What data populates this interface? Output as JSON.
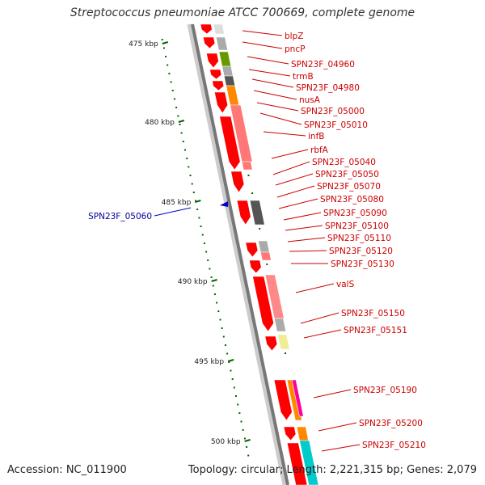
{
  "title": "Streptococcus pneumoniae ATCC 700669, complete genome",
  "footer": {
    "accession": "Accession: NC_011900",
    "summary": "Topology: circular; Length: 2,221,315 bp; Genes: 2,079"
  },
  "kbp_labels": [
    "475 kbp",
    "480 kbp",
    "485 kbp",
    "490 kbp",
    "495 kbp",
    "500 kbp"
  ],
  "gene_labels": [
    "blpZ",
    "pncP",
    "SPN23F_04960",
    "trmB",
    "SPN23F_04980",
    "nusA",
    "SPN23F_05000",
    "SPN23F_05010",
    "infB",
    "rbfA",
    "SPN23F_05040",
    "SPN23F_05050",
    "SPN23F_05070",
    "SPN23F_05080",
    "SPN23F_05090",
    "SPN23F_05100",
    "SPN23F_05110",
    "SPN23F_05120",
    "SPN23F_05130",
    "valS",
    "SPN23F_05150",
    "SPN23F_05151",
    "SPN23F_05190",
    "SPN23F_05200",
    "SPN23F_05210"
  ],
  "highlight_label": "SPN23F_05060",
  "colors": {
    "gene_red": "#ff0000",
    "label_red": "#cc0000",
    "highlight_blue": "#000099",
    "tick_green": "#006600"
  }
}
